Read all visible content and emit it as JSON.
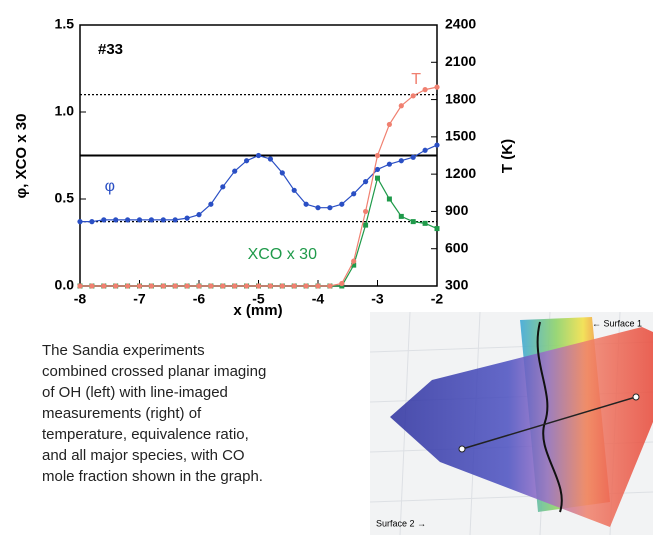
{
  "chart_data": {
    "type": "line",
    "annotation": "#33",
    "xlabel": "x (mm)",
    "ylabel": "φ, XCO x 30",
    "y2label": "T (K)",
    "x": [
      -8,
      -7.8,
      -7.6,
      -7.4,
      -7.2,
      -7,
      -6.8,
      -6.6,
      -6.4,
      -6.2,
      -6,
      -5.8,
      -5.6,
      -5.4,
      -5.2,
      -5,
      -4.8,
      -4.6,
      -4.4,
      -4.2,
      -4,
      -3.8,
      -3.6,
      -3.4,
      -3.2,
      -3,
      -2.8,
      -2.6,
      -2.4,
      -2.2,
      -2
    ],
    "series": [
      {
        "name": "φ",
        "color": "#2a4fc4",
        "marker": "circle",
        "values": [
          0.37,
          0.37,
          0.38,
          0.38,
          0.38,
          0.38,
          0.38,
          0.38,
          0.38,
          0.39,
          0.41,
          0.47,
          0.57,
          0.66,
          0.72,
          0.75,
          0.73,
          0.65,
          0.55,
          0.47,
          0.45,
          0.45,
          0.47,
          0.53,
          0.6,
          0.67,
          0.7,
          0.72,
          0.74,
          0.78,
          0.81
        ]
      },
      {
        "name": "XCO x 30",
        "color": "#1f9a4a",
        "marker": "square",
        "values": [
          0,
          0,
          0,
          0,
          0,
          0,
          0,
          0,
          0,
          0,
          0,
          0,
          0,
          0,
          0,
          0,
          0,
          0,
          0,
          0,
          0,
          0,
          0,
          0.12,
          0.35,
          0.62,
          0.5,
          0.4,
          0.37,
          0.36,
          0.33
        ]
      },
      {
        "name": "T",
        "color": "#f08070",
        "marker": "circle",
        "axis": "y2",
        "values": [
          300,
          300,
          300,
          300,
          300,
          300,
          300,
          300,
          300,
          300,
          300,
          300,
          300,
          300,
          300,
          300,
          300,
          300,
          300,
          300,
          300,
          300,
          320,
          500,
          900,
          1350,
          1600,
          1750,
          1830,
          1880,
          1900
        ]
      }
    ],
    "hlines": [
      {
        "value": 1.1,
        "style": "dotted"
      },
      {
        "value": 0.75,
        "style": "solid"
      },
      {
        "value": 0.37,
        "style": "dotted"
      }
    ],
    "xlim": [
      -8,
      -2
    ],
    "xticks": [
      -8,
      -7,
      -6,
      -5,
      -4,
      -3,
      -2
    ],
    "ylim": [
      0,
      1.5
    ],
    "yticks": [
      {
        "value": 0,
        "label": "0.0"
      },
      {
        "value": 0.5,
        "label": "0.5"
      },
      {
        "value": 1,
        "label": "1.0"
      },
      {
        "value": 1.5,
        "label": "1.5"
      }
    ],
    "y2lim": [
      300,
      2400
    ],
    "y2ticks": [
      300,
      600,
      900,
      1200,
      1500,
      1800,
      2100,
      2400
    ]
  },
  "caption": [
    "The Sandia experiments",
    "combined crossed planar imaging",
    "of OH (left) with line-imaged",
    "measurements (right) of",
    "temperature, equivalence ratio,",
    "and all major species, with CO",
    "mole fraction shown in the graph."
  ],
  "image": {
    "surface_1": "← Surface 1",
    "surface_2": "Surface 2 →"
  }
}
